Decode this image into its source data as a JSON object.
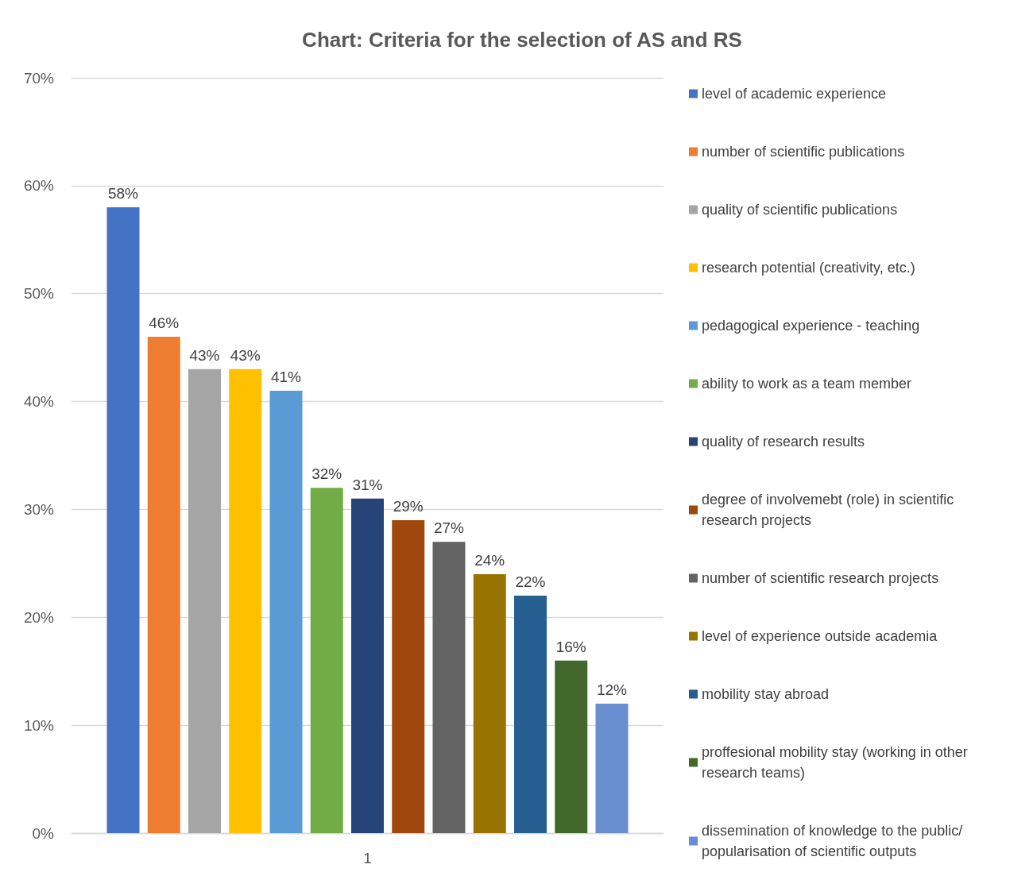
{
  "chart_data": {
    "type": "bar",
    "title": "Chart: Criteria for the selection of AS and RS",
    "categories": [
      "1"
    ],
    "ylim": [
      0,
      70
    ],
    "yticks": [
      {
        "value": 0,
        "label": "0%"
      },
      {
        "value": 10,
        "label": "10%"
      },
      {
        "value": 20,
        "label": "20%"
      },
      {
        "value": 30,
        "label": "30%"
      },
      {
        "value": 40,
        "label": "40%"
      },
      {
        "value": 50,
        "label": "50%"
      },
      {
        "value": 60,
        "label": "60%"
      },
      {
        "value": 70,
        "label": "70%"
      }
    ],
    "grid": "y",
    "legend": "right",
    "series": [
      {
        "name": "level of academic experience",
        "color": "#4472c4",
        "values": [
          58
        ],
        "value_labels": [
          "58%"
        ]
      },
      {
        "name": "number of scientific publications",
        "color": "#ed7d31",
        "values": [
          46
        ],
        "value_labels": [
          "46%"
        ]
      },
      {
        "name": "quality of scientific publications",
        "color": "#a5a5a5",
        "values": [
          43
        ],
        "value_labels": [
          "43%"
        ]
      },
      {
        "name": "research potential (creativity, etc.)",
        "color": "#ffc000",
        "values": [
          43
        ],
        "value_labels": [
          "43%"
        ]
      },
      {
        "name": "pedagogical experience - teaching",
        "color": "#5b9bd5",
        "values": [
          41
        ],
        "value_labels": [
          "41%"
        ]
      },
      {
        "name": "ability to work as a team member",
        "color": "#70ad47",
        "values": [
          32
        ],
        "value_labels": [
          "32%"
        ]
      },
      {
        "name": "quality of research results",
        "color": "#264478",
        "values": [
          31
        ],
        "value_labels": [
          "31%"
        ]
      },
      {
        "name": "degree of involvemebt (role) in scientific research projects",
        "color": "#9e480e",
        "values": [
          29
        ],
        "value_labels": [
          "29%"
        ]
      },
      {
        "name": "number of scientific research projects",
        "color": "#636363",
        "values": [
          27
        ],
        "value_labels": [
          "27%"
        ]
      },
      {
        "name": "level of experience outside academia",
        "color": "#997300",
        "values": [
          24
        ],
        "value_labels": [
          "24%"
        ]
      },
      {
        "name": "mobility stay abroad",
        "color": "#255e91",
        "values": [
          22
        ],
        "value_labels": [
          "22%"
        ]
      },
      {
        "name": "proffesional mobility stay (working in other research teams)",
        "color": "#43682b",
        "values": [
          16
        ],
        "value_labels": [
          "16%"
        ]
      },
      {
        "name": "dissemination of knowledge to the public/ popularisation of scientific outputs",
        "color": "#698ed0",
        "values": [
          12
        ],
        "value_labels": [
          "12%"
        ]
      }
    ]
  }
}
